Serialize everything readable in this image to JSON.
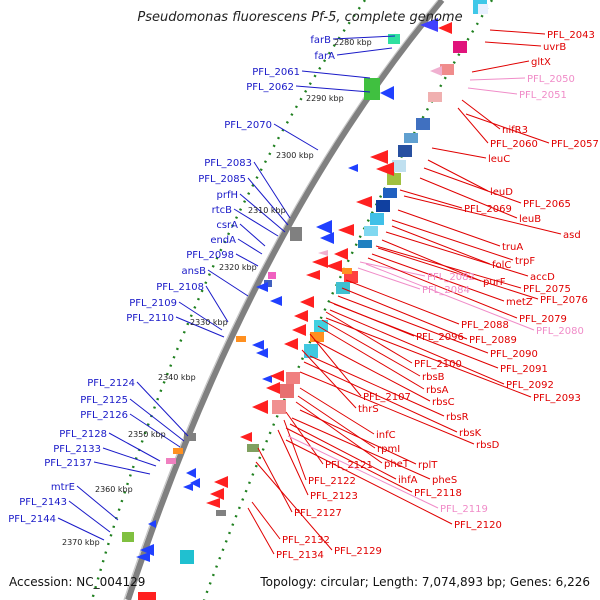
{
  "title": "Pseudomonas fluorescens Pf-5, complete genome",
  "footer": {
    "accession": "Accession: NC_004129",
    "topology": "Topology: circular; Length: 7,074,893 bp; Genes: 6,226"
  },
  "colors": {
    "left_labels": "#1a1ac8",
    "right_labels": "#e00000",
    "right_labels_faint": "#f08cc8",
    "backbone": "#808080",
    "tick": "#208020"
  },
  "scale_labels": [
    "2280 kbp",
    "2290 kbp",
    "2300 kbp",
    "2310 kbp",
    "2320 kbp",
    "2330 kbp",
    "2340 kbp",
    "2350 kbp",
    "2360 kbp",
    "2370 kbp"
  ],
  "left_labels": [
    "farB",
    "farA",
    "PFL_2061",
    "PFL_2062",
    "PFL_2070",
    "PFL_2083",
    "PFL_2085",
    "prfH",
    "rtcB",
    "csrA",
    "endA",
    "PFL_2098",
    "ansB",
    "PFL_2108",
    "PFL_2109",
    "PFL_2110",
    "PFL_2124",
    "PFL_2125",
    "PFL_2126",
    "PFL_2128",
    "PFL_2133",
    "PFL_2137",
    "mtrE",
    "PFL_2143",
    "PFL_2144"
  ],
  "right_labels": [
    "PFL_2043",
    "uvrB",
    "gltX",
    "PFL_2050",
    "PFL_2051",
    "nifR3",
    "PFL_2060",
    "PFL_2057",
    "leuC",
    "leuD",
    "PFL_2065",
    "leuB",
    "asd",
    "PFL_2069",
    "truA",
    "trpF",
    "folC",
    "accD",
    "purF",
    "PFL_2075",
    "metZ",
    "PFL_2076",
    "PFL_2082",
    "PFL_2084",
    "PFL_2079",
    "PFL_2080",
    "PFL_2088",
    "PFL_2089",
    "PFL_2090",
    "PFL_2096",
    "PFL_2091",
    "PFL_2100",
    "PFL_2092",
    "rbsB",
    "rbsA",
    "PFL_2093",
    "PFL_2107",
    "rbsC",
    "thrS",
    "rbsR",
    "rbsK",
    "infC",
    "rbsD",
    "rpmI",
    "pheT",
    "rplT",
    "PFL_2121",
    "pheS",
    "PFL_2122",
    "ihfA",
    "PFL_2118",
    "PFL_2123",
    "PFL_2119",
    "PFL_2127",
    "PFL_2120",
    "PFL_2132",
    "PFL_2129",
    "PFL_2134"
  ]
}
